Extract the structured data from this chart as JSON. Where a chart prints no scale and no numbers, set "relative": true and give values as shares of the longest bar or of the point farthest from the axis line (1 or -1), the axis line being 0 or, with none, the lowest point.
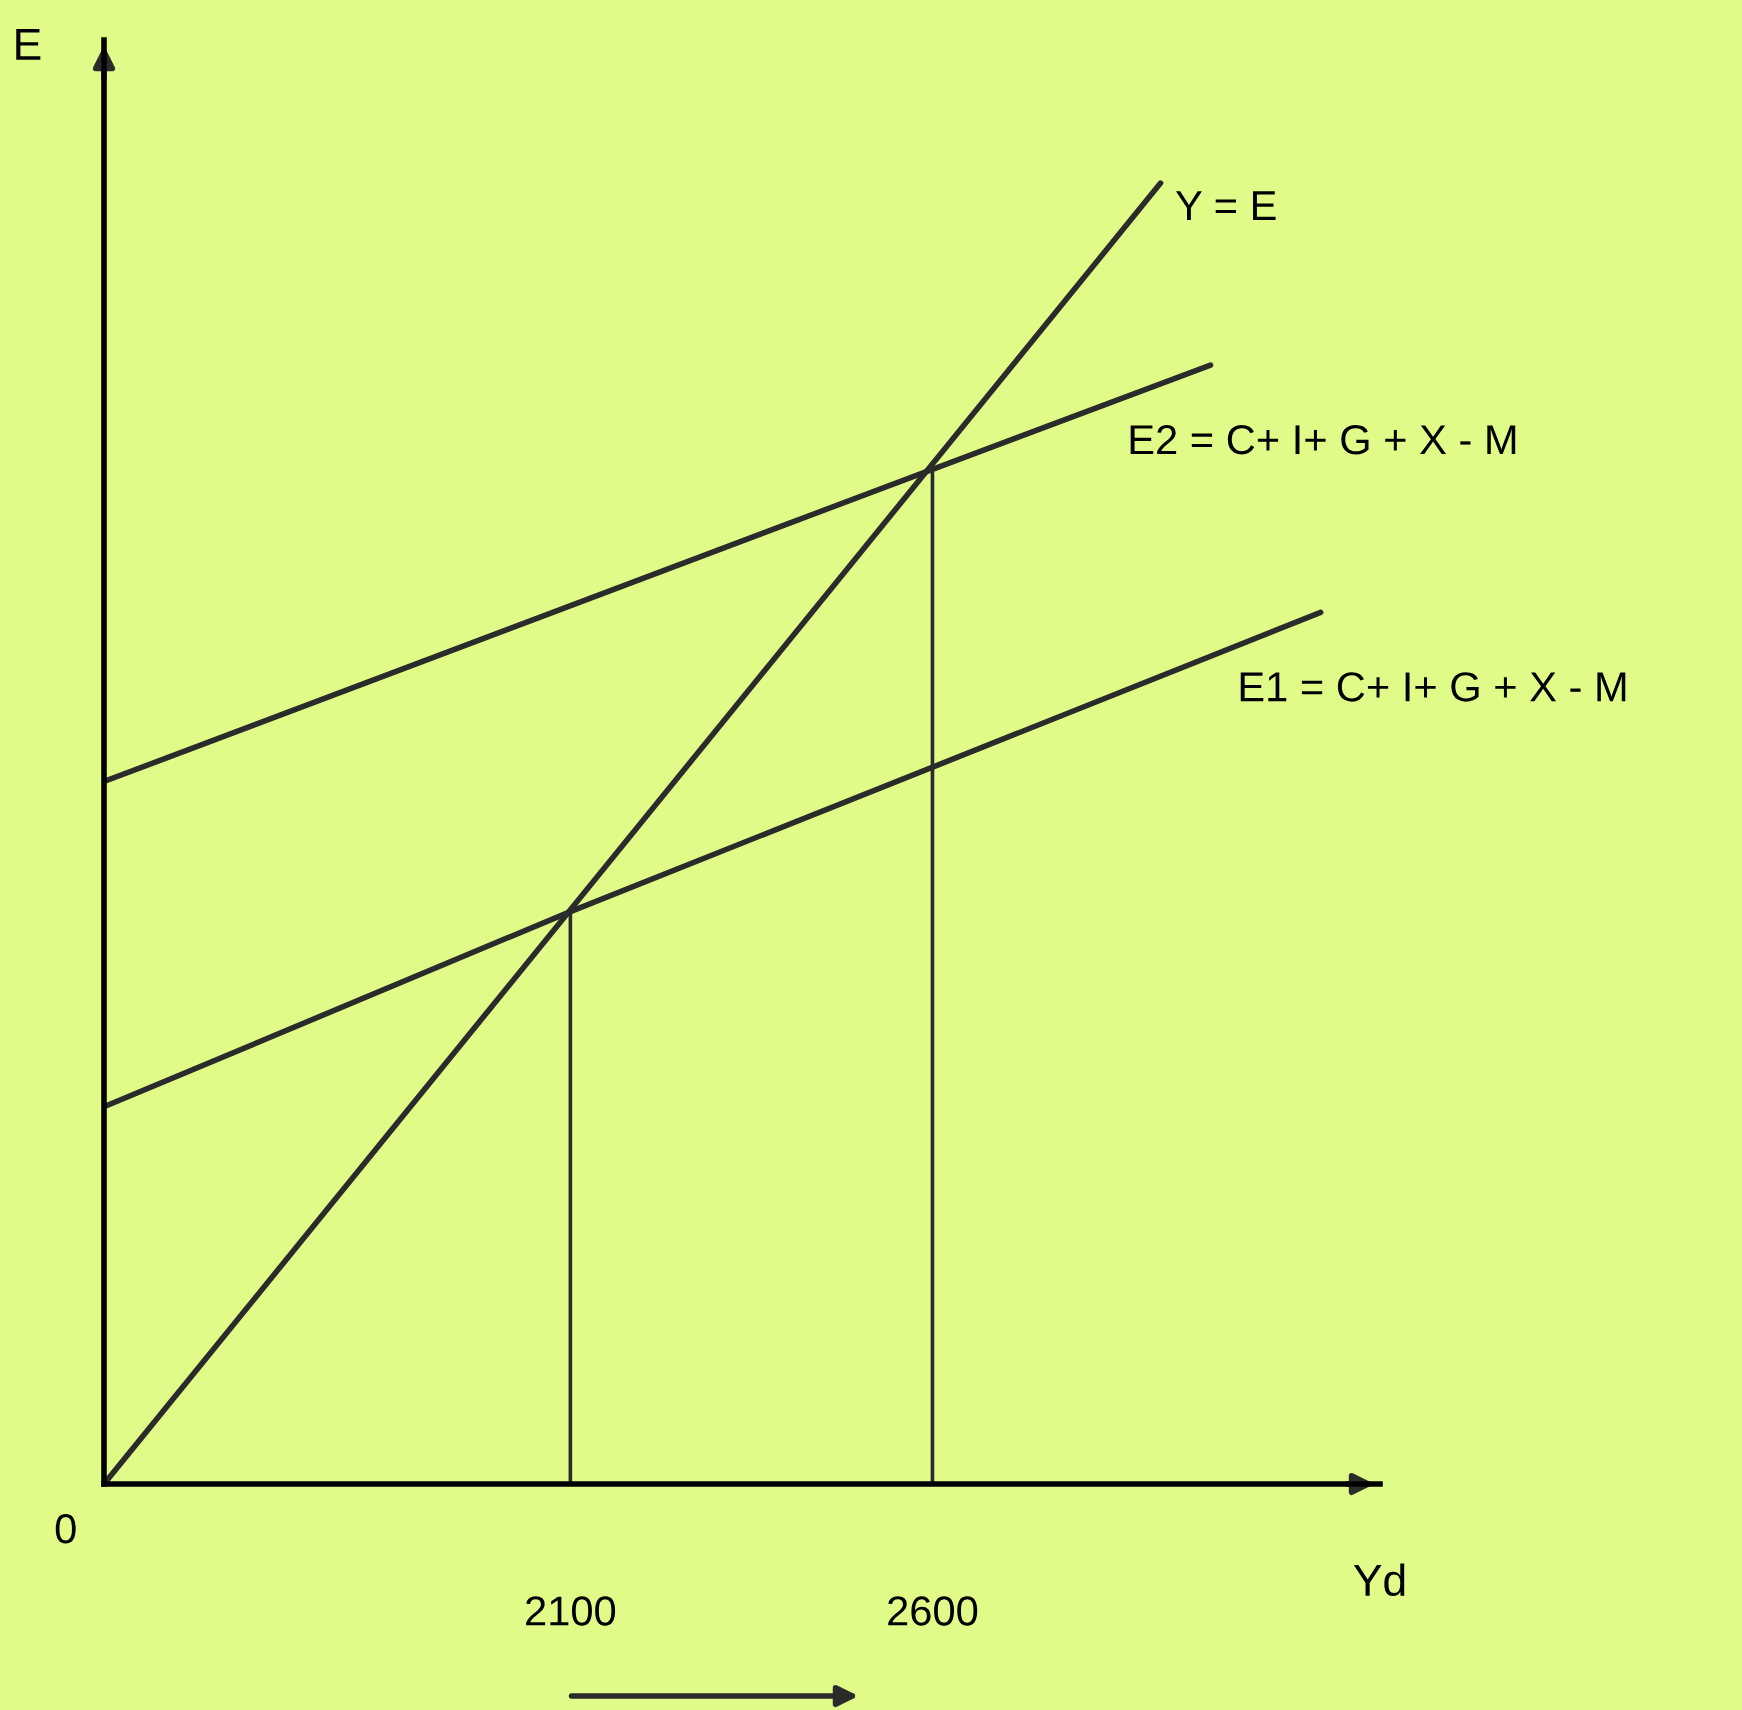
{
  "chart_data": {
    "type": "line",
    "relative": true,
    "xlabel": "Yd",
    "ylabel": "E",
    "xlim": [
      1456,
      3218
    ],
    "xticks": [
      2100,
      2600
    ],
    "grid": false,
    "legend": false,
    "marker": "none",
    "line_style": "solid",
    "annotations": [
      "0"
    ],
    "series": [
      {
        "name": "Y = E",
        "color": "#2b2b2b",
        "x": [
          1456,
          2915
        ],
        "values": [
          0,
          1
        ]
      },
      {
        "name": "E2 = C+ I+ G + X - M",
        "color": "#2b2b2b",
        "x": [
          1456,
          2600,
          2984
        ],
        "values": [
          0.54,
          0.78,
          0.86
        ]
      },
      {
        "name": "E1 = C+ I+ G + X - M",
        "color": "#2b2b2b",
        "x": [
          1456,
          2100,
          3136
        ],
        "values": [
          0.29,
          0.44,
          0.67
        ]
      }
    ],
    "ref_lines": [
      {
        "axis": "x",
        "value": 2100,
        "color": "#2b2b2b"
      },
      {
        "axis": "x",
        "value": 2600,
        "color": "#2b2b2b"
      }
    ]
  }
}
